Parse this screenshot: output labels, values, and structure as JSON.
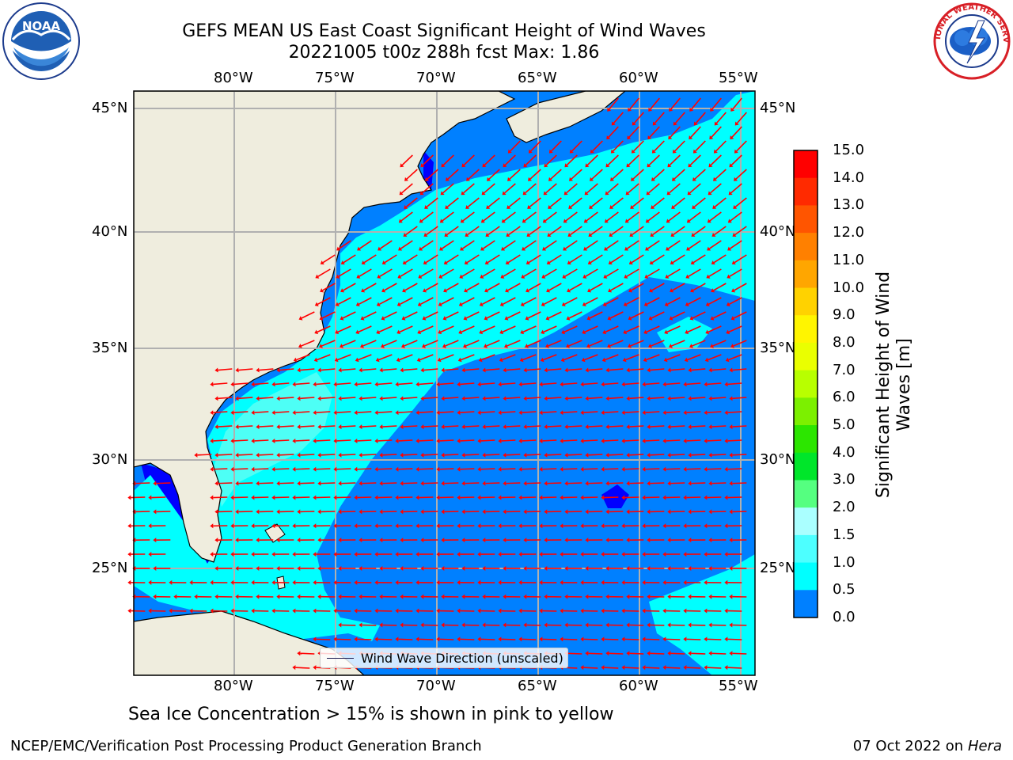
{
  "title": {
    "line1": "GEFS MEAN US East Coast Significant Height of Wind Waves",
    "line2": "20221005 t00z 288h fcst   Max: 1.86"
  },
  "logos": {
    "left": {
      "name": "noaa-logo",
      "text": "NOAA"
    },
    "right": {
      "name": "nws-logo",
      "text": "NATIONAL WEATHER SERVICE"
    }
  },
  "map": {
    "lon_labels": [
      "80°W",
      "75°W",
      "70°W",
      "65°W",
      "60°W",
      "55°W"
    ],
    "lat_labels": [
      "45°N",
      "40°N",
      "35°N",
      "30°N",
      "25°N"
    ],
    "legend_label": "Wind Wave Direction (unscaled)",
    "colors": {
      "land": "#efedde",
      "ocean_low": "#0000ff",
      "ocean_0_5": "#0080ff",
      "ocean_1_0": "#00ffff",
      "ocean_1_5": "#4dfff6",
      "arrow": "#ff0000",
      "grid": "#b0b0b0"
    }
  },
  "colorbar": {
    "title": "Significant Height of Wind Waves [m]",
    "labels": [
      "15.0",
      "14.0",
      "13.0",
      "12.0",
      "11.0",
      "10.0",
      "9.0",
      "8.0",
      "7.0",
      "6.0",
      "5.0",
      "4.0",
      "3.0",
      "2.0",
      "1.5",
      "1.0",
      "0.5",
      "0.0"
    ],
    "colors": [
      "#ff0000",
      "#ff2a00",
      "#ff5500",
      "#ff8000",
      "#ffa600",
      "#ffd200",
      "#fff500",
      "#eaff00",
      "#b8ff00",
      "#7cf000",
      "#2ce600",
      "#00e62a",
      "#55ff80",
      "#aaffff",
      "#4dffff",
      "#00ffff",
      "#0080ff",
      "#0000ff"
    ]
  },
  "footer": {
    "note": "Sea Ice Concentration > 15% is shown in pink to yellow",
    "left": "NCEP/EMC/Verification Post Processing Product Generation Branch",
    "date": "07 Oct 2022 on ",
    "host": "Hera"
  }
}
